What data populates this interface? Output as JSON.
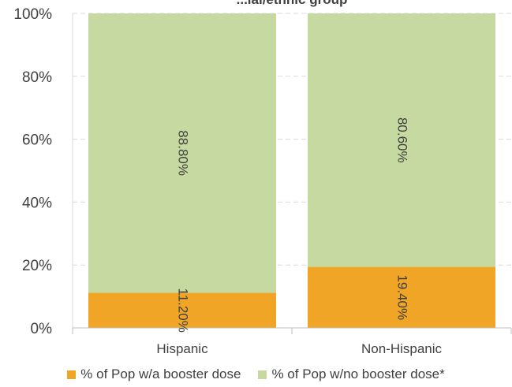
{
  "chart_data": {
    "type": "bar",
    "stacked": true,
    "title": "...ial/ethnic group",
    "categories": [
      "Hispanic",
      "Non-Hispanic"
    ],
    "series": [
      {
        "name": "% of Pop w/a booster dose",
        "values": [
          11.2,
          19.4
        ],
        "labels": [
          "11.20%",
          "19.40%"
        ],
        "color": "#f0a527"
      },
      {
        "name": "% of Pop w/no booster dose*",
        "values": [
          88.8,
          80.6
        ],
        "labels": [
          "88.80%",
          "80.60%"
        ],
        "color": "#c5d9a0"
      }
    ],
    "ylim": [
      0,
      100
    ],
    "yticks": [
      "0%",
      "20%",
      "40%",
      "60%",
      "80%",
      "100%"
    ],
    "grid": true,
    "legend_position": "bottom"
  }
}
